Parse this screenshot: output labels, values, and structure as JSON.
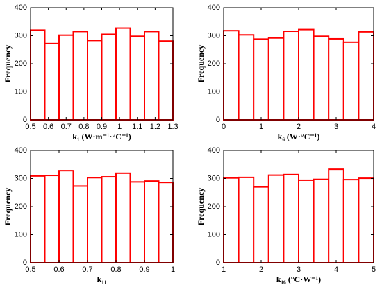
{
  "chart_data": [
    {
      "type": "histogram",
      "xlabel": "k₁ (W·m⁻¹·°C⁻¹)",
      "ylabel": "Frequency",
      "color": "#ff0000",
      "bins": [
        0.5,
        0.58,
        0.66,
        0.74,
        0.82,
        0.9,
        0.98,
        1.06,
        1.14,
        1.22,
        1.3
      ],
      "counts": [
        320,
        272,
        302,
        315,
        283,
        305,
        327,
        298,
        315,
        281
      ],
      "xlim": [
        0.5,
        1.3
      ],
      "xticks": [
        0.5,
        0.6,
        0.7,
        0.8,
        0.9,
        1,
        1.1,
        1.2,
        1.3
      ],
      "ylim": [
        0,
        400
      ],
      "yticks": [
        0,
        100,
        200,
        300,
        400
      ]
    },
    {
      "type": "histogram",
      "xlabel": "k₆ (W·°C⁻¹)",
      "ylabel": "Frequency",
      "color": "#ff0000",
      "bins": [
        0,
        0.4,
        0.8,
        1.2,
        1.6,
        2,
        2.4,
        2.8,
        3.2,
        3.6,
        4
      ],
      "counts": [
        318,
        303,
        288,
        292,
        316,
        322,
        298,
        289,
        277,
        314
      ],
      "xlim": [
        0,
        4
      ],
      "xticks": [
        0,
        1,
        2,
        3,
        4
      ],
      "ylim": [
        0,
        400
      ],
      "yticks": [
        0,
        100,
        200,
        300,
        400
      ]
    },
    {
      "type": "histogram",
      "xlabel": "k₁₁",
      "ylabel": "Frequency",
      "color": "#ff0000",
      "bins": [
        0.5,
        0.55,
        0.6,
        0.65,
        0.7,
        0.75,
        0.8,
        0.85,
        0.9,
        0.95,
        1
      ],
      "counts": [
        309,
        311,
        328,
        273,
        303,
        306,
        319,
        288,
        291,
        286
      ],
      "xlim": [
        0.5,
        1
      ],
      "xticks": [
        0.5,
        0.6,
        0.7,
        0.8,
        0.9,
        1
      ],
      "ylim": [
        0,
        400
      ],
      "yticks": [
        0,
        100,
        200,
        300,
        400
      ]
    },
    {
      "type": "histogram",
      "xlabel": "k₁₆ (°C·W⁻¹)",
      "ylabel": "Frequency",
      "color": "#ff0000",
      "bins": [
        1,
        1.4,
        1.8,
        2.2,
        2.6,
        3,
        3.4,
        3.8,
        4.2,
        4.6,
        5
      ],
      "counts": [
        302,
        304,
        270,
        312,
        314,
        294,
        297,
        333,
        296,
        301
      ],
      "xlim": [
        1,
        5
      ],
      "xticks": [
        1,
        2,
        3,
        4,
        5
      ],
      "ylim": [
        0,
        400
      ],
      "yticks": [
        0,
        100,
        200,
        300,
        400
      ]
    }
  ]
}
